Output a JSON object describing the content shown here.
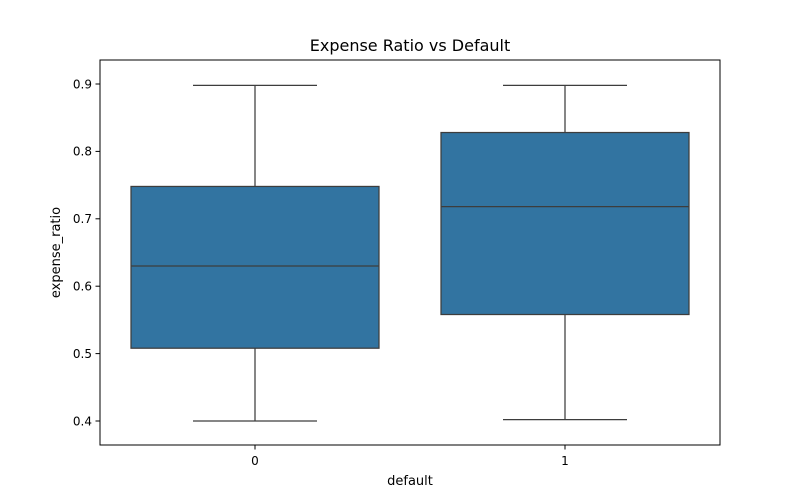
{
  "chart_data": {
    "type": "box",
    "title": "Expense Ratio vs Default",
    "xlabel": "default",
    "ylabel": "expense_ratio",
    "categories": [
      "0",
      "1"
    ],
    "boxes": [
      {
        "category": "0",
        "min": 0.4,
        "q1": 0.508,
        "median": 0.63,
        "q3": 0.748,
        "max": 0.898
      },
      {
        "category": "1",
        "min": 0.402,
        "q1": 0.558,
        "median": 0.718,
        "q3": 0.828,
        "max": 0.898
      }
    ],
    "yticks": [
      0.4,
      0.5,
      0.6,
      0.7,
      0.8,
      0.9
    ],
    "yticklabels": [
      "0.4",
      "0.5",
      "0.6",
      "0.7",
      "0.8",
      "0.9"
    ],
    "ylim": [
      0.3644,
      0.9356
    ],
    "grid": false,
    "box_color": "#3274a1",
    "line_color": "#3d3d3d"
  }
}
